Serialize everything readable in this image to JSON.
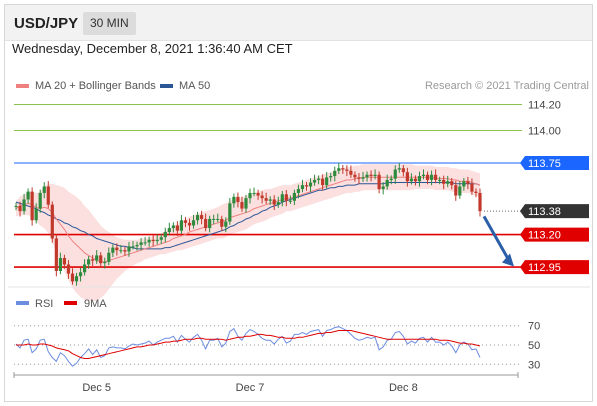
{
  "header": {
    "symbol": "USD/JPY",
    "timeframe": "30 MIN"
  },
  "datetime": "Wednesday, December 8, 2021 1:36:40 AM CET",
  "legend": {
    "ma20": {
      "label": "MA 20 + Bollinger Bands",
      "color": "#f08080"
    },
    "ma50": {
      "label": "MA 50",
      "color": "#2b5797"
    }
  },
  "credit": "Research © 2021 Trading Central",
  "colors": {
    "up": "#2e8b3e",
    "down": "#c0392b",
    "support": "#e00000",
    "pivot": "#1a66ff",
    "resistance": "#8bc34a",
    "last": "#333333",
    "band": "#fbd9d9",
    "rsi": "#6c8ce0",
    "rsi_ma": "#e00000",
    "arrow": "#2a5ea8"
  },
  "chart_data": [
    {
      "type": "candlestick",
      "title": "",
      "ylim": [
        112.82,
        114.25
      ],
      "x_ticks": [
        "Dec 5",
        "Dec 7",
        "Dec 8"
      ],
      "levels": [
        {
          "label": "114.20",
          "value": 114.2,
          "role": "resistance"
        },
        {
          "label": "114.00",
          "value": 114.0,
          "role": "resistance"
        },
        {
          "label": "113.75",
          "value": 113.75,
          "role": "pivot"
        },
        {
          "label": "113.38",
          "value": 113.38,
          "role": "last"
        },
        {
          "label": "113.20",
          "value": 113.2,
          "role": "support"
        },
        {
          "label": "112.95",
          "value": 112.95,
          "role": "support"
        }
      ],
      "close": [
        113.42,
        113.38,
        113.47,
        113.53,
        113.31,
        113.4,
        113.52,
        113.57,
        113.43,
        113.17,
        112.92,
        113.02,
        112.97,
        112.9,
        112.84,
        112.88,
        112.91,
        112.97,
        113.01,
        113.0,
        113.04,
        112.98,
        112.99,
        113.06,
        113.1,
        113.08,
        113.08,
        113.07,
        113.11,
        113.11,
        113.12,
        113.14,
        113.14,
        113.16,
        113.15,
        113.16,
        113.18,
        113.22,
        113.25,
        113.27,
        113.23,
        113.31,
        113.29,
        113.27,
        113.31,
        113.35,
        113.32,
        113.25,
        113.32,
        113.32,
        113.32,
        113.26,
        113.3,
        113.44,
        113.49,
        113.45,
        113.4,
        113.48,
        113.52,
        113.52,
        113.5,
        113.48,
        113.46,
        113.47,
        113.43,
        113.45,
        113.51,
        113.46,
        113.46,
        113.52,
        113.55,
        113.58,
        113.57,
        113.6,
        113.62,
        113.63,
        113.58,
        113.64,
        113.65,
        113.69,
        113.71,
        113.7,
        113.69,
        113.66,
        113.64,
        113.63,
        113.64,
        113.66,
        113.65,
        113.66,
        113.55,
        113.57,
        113.62,
        113.63,
        113.7,
        113.71,
        113.68,
        113.61,
        113.63,
        113.61,
        113.65,
        113.66,
        113.62,
        113.66,
        113.62,
        113.62,
        113.59,
        113.61,
        113.58,
        113.5,
        113.57,
        113.61,
        113.59,
        113.53,
        113.52,
        113.38
      ],
      "ma20": [
        113.4,
        113.42,
        113.43,
        113.44,
        113.43,
        113.41,
        113.4,
        113.41,
        113.4,
        113.37,
        113.32,
        113.28,
        113.24,
        113.19,
        113.15,
        113.12,
        113.09,
        113.06,
        113.04,
        113.02,
        113.0,
        112.99,
        112.99,
        113.0,
        113.01,
        113.02,
        113.03,
        113.04,
        113.05,
        113.06,
        113.07,
        113.08,
        113.09,
        113.1,
        113.11,
        113.12,
        113.13,
        113.14,
        113.15,
        113.17,
        113.18,
        113.19,
        113.2,
        113.22,
        113.23,
        113.24,
        113.25,
        113.26,
        113.27,
        113.28,
        113.29,
        113.3,
        113.31,
        113.33,
        113.34,
        113.35,
        113.36,
        113.37,
        113.38,
        113.4,
        113.41,
        113.42,
        113.43,
        113.44,
        113.45,
        113.46,
        113.47,
        113.48,
        113.48,
        113.49,
        113.5,
        113.51,
        113.52,
        113.53,
        113.54,
        113.55,
        113.56,
        113.57,
        113.58,
        113.59,
        113.6,
        113.61,
        113.62,
        113.62,
        113.63,
        113.63,
        113.64,
        113.64,
        113.64,
        113.64,
        113.64,
        113.64,
        113.64,
        113.64,
        113.64,
        113.64,
        113.64,
        113.64,
        113.64,
        113.64,
        113.64,
        113.64,
        113.64,
        113.64,
        113.63,
        113.63,
        113.63,
        113.63,
        113.62,
        113.62,
        113.61,
        113.61,
        113.61,
        113.6,
        113.59,
        113.58
      ],
      "ma50": [
        113.45,
        113.44,
        113.43,
        113.42,
        113.41,
        113.4,
        113.38,
        113.37,
        113.35,
        113.34,
        113.32,
        113.31,
        113.29,
        113.28,
        113.26,
        113.25,
        113.23,
        113.22,
        113.2,
        113.19,
        113.17,
        113.16,
        113.15,
        113.14,
        113.13,
        113.12,
        113.11,
        113.11,
        113.1,
        113.1,
        113.09,
        113.09,
        113.09,
        113.09,
        113.09,
        113.09,
        113.09,
        113.1,
        113.1,
        113.11,
        113.12,
        113.13,
        113.14,
        113.15,
        113.16,
        113.17,
        113.18,
        113.19,
        113.2,
        113.21,
        113.22,
        113.23,
        113.24,
        113.26,
        113.27,
        113.29,
        113.3,
        113.32,
        113.33,
        113.35,
        113.36,
        113.38,
        113.39,
        113.41,
        113.42,
        113.43,
        113.45,
        113.46,
        113.47,
        113.48,
        113.49,
        113.5,
        113.51,
        113.52,
        113.53,
        113.54,
        113.54,
        113.55,
        113.56,
        113.56,
        113.57,
        113.57,
        113.58,
        113.58,
        113.58,
        113.59,
        113.59,
        113.59,
        113.59,
        113.59,
        113.59,
        113.59,
        113.6,
        113.6,
        113.6,
        113.6,
        113.6,
        113.6,
        113.6,
        113.6,
        113.6,
        113.6,
        113.6,
        113.6,
        113.6,
        113.6,
        113.6,
        113.6,
        113.6,
        113.59,
        113.59,
        113.59,
        113.59,
        113.59,
        113.59,
        113.58
      ],
      "band_width": [
        0.06,
        0.07,
        0.08,
        0.09,
        0.1,
        0.11,
        0.13,
        0.16,
        0.19,
        0.22,
        0.26,
        0.29,
        0.32,
        0.34,
        0.36,
        0.37,
        0.37,
        0.36,
        0.35,
        0.33,
        0.31,
        0.28,
        0.25,
        0.22,
        0.19,
        0.16,
        0.14,
        0.12,
        0.11,
        0.1,
        0.09,
        0.09,
        0.08,
        0.08,
        0.08,
        0.08,
        0.08,
        0.09,
        0.09,
        0.1,
        0.1,
        0.11,
        0.11,
        0.12,
        0.12,
        0.12,
        0.12,
        0.12,
        0.12,
        0.12,
        0.12,
        0.13,
        0.13,
        0.13,
        0.13,
        0.13,
        0.13,
        0.13,
        0.12,
        0.12,
        0.12,
        0.12,
        0.12,
        0.11,
        0.11,
        0.11,
        0.11,
        0.1,
        0.1,
        0.1,
        0.1,
        0.1,
        0.1,
        0.1,
        0.1,
        0.1,
        0.1,
        0.1,
        0.1,
        0.1,
        0.1,
        0.1,
        0.1,
        0.1,
        0.1,
        0.1,
        0.1,
        0.1,
        0.1,
        0.1,
        0.1,
        0.1,
        0.1,
        0.1,
        0.1,
        0.1,
        0.1,
        0.1,
        0.1,
        0.09,
        0.09,
        0.09,
        0.09,
        0.09,
        0.09,
        0.09,
        0.09,
        0.09,
        0.09,
        0.09,
        0.09,
        0.09,
        0.09,
        0.09,
        0.09,
        0.09
      ],
      "projection": {
        "from": 113.34,
        "to": 112.97
      }
    },
    {
      "type": "line",
      "title": "",
      "legend": [
        "RSI",
        "9MA"
      ],
      "ylim": [
        22,
        78
      ],
      "y_ticks": [
        70,
        50,
        30
      ],
      "series": [
        {
          "name": "RSI",
          "values": [
            51,
            47,
            55,
            56,
            42,
            46,
            55,
            56,
            43,
            37,
            33,
            42,
            39,
            33,
            28,
            31,
            37,
            41,
            46,
            40,
            45,
            37,
            39,
            47,
            48,
            47,
            47,
            46,
            49,
            51,
            50,
            51,
            52,
            54,
            50,
            53,
            55,
            57,
            57,
            59,
            53,
            60,
            56,
            53,
            58,
            61,
            55,
            46,
            55,
            55,
            57,
            48,
            52,
            64,
            67,
            59,
            55,
            62,
            66,
            64,
            61,
            57,
            55,
            55,
            51,
            56,
            59,
            52,
            54,
            61,
            61,
            63,
            61,
            64,
            65,
            66,
            59,
            65,
            66,
            68,
            69,
            67,
            65,
            61,
            57,
            55,
            56,
            58,
            57,
            58,
            45,
            48,
            55,
            56,
            63,
            64,
            59,
            51,
            54,
            52,
            57,
            58,
            53,
            58,
            53,
            53,
            50,
            53,
            49,
            42,
            50,
            53,
            51,
            45,
            46,
            37
          ]
        },
        {
          "name": "9MA",
          "values": [
            50,
            50,
            50,
            51,
            50,
            50,
            51,
            51,
            50,
            49,
            47,
            46,
            45,
            44,
            41,
            39,
            37,
            36,
            36,
            37,
            38,
            39,
            40,
            41,
            42,
            43,
            44,
            45,
            46,
            47,
            48,
            48,
            49,
            50,
            50,
            51,
            52,
            53,
            53,
            54,
            54,
            55,
            56,
            56,
            56,
            57,
            57,
            56,
            56,
            56,
            56,
            56,
            55,
            56,
            57,
            58,
            58,
            59,
            59,
            60,
            61,
            61,
            60,
            60,
            59,
            58,
            58,
            57,
            57,
            57,
            58,
            58,
            59,
            60,
            61,
            62,
            62,
            63,
            63,
            64,
            65,
            65,
            65,
            65,
            64,
            63,
            62,
            61,
            60,
            59,
            58,
            57,
            56,
            56,
            56,
            56,
            56,
            56,
            56,
            56,
            56,
            56,
            56,
            56,
            56,
            55,
            55,
            55,
            54,
            53,
            52,
            52,
            51,
            51,
            50,
            49
          ]
        }
      ]
    }
  ]
}
